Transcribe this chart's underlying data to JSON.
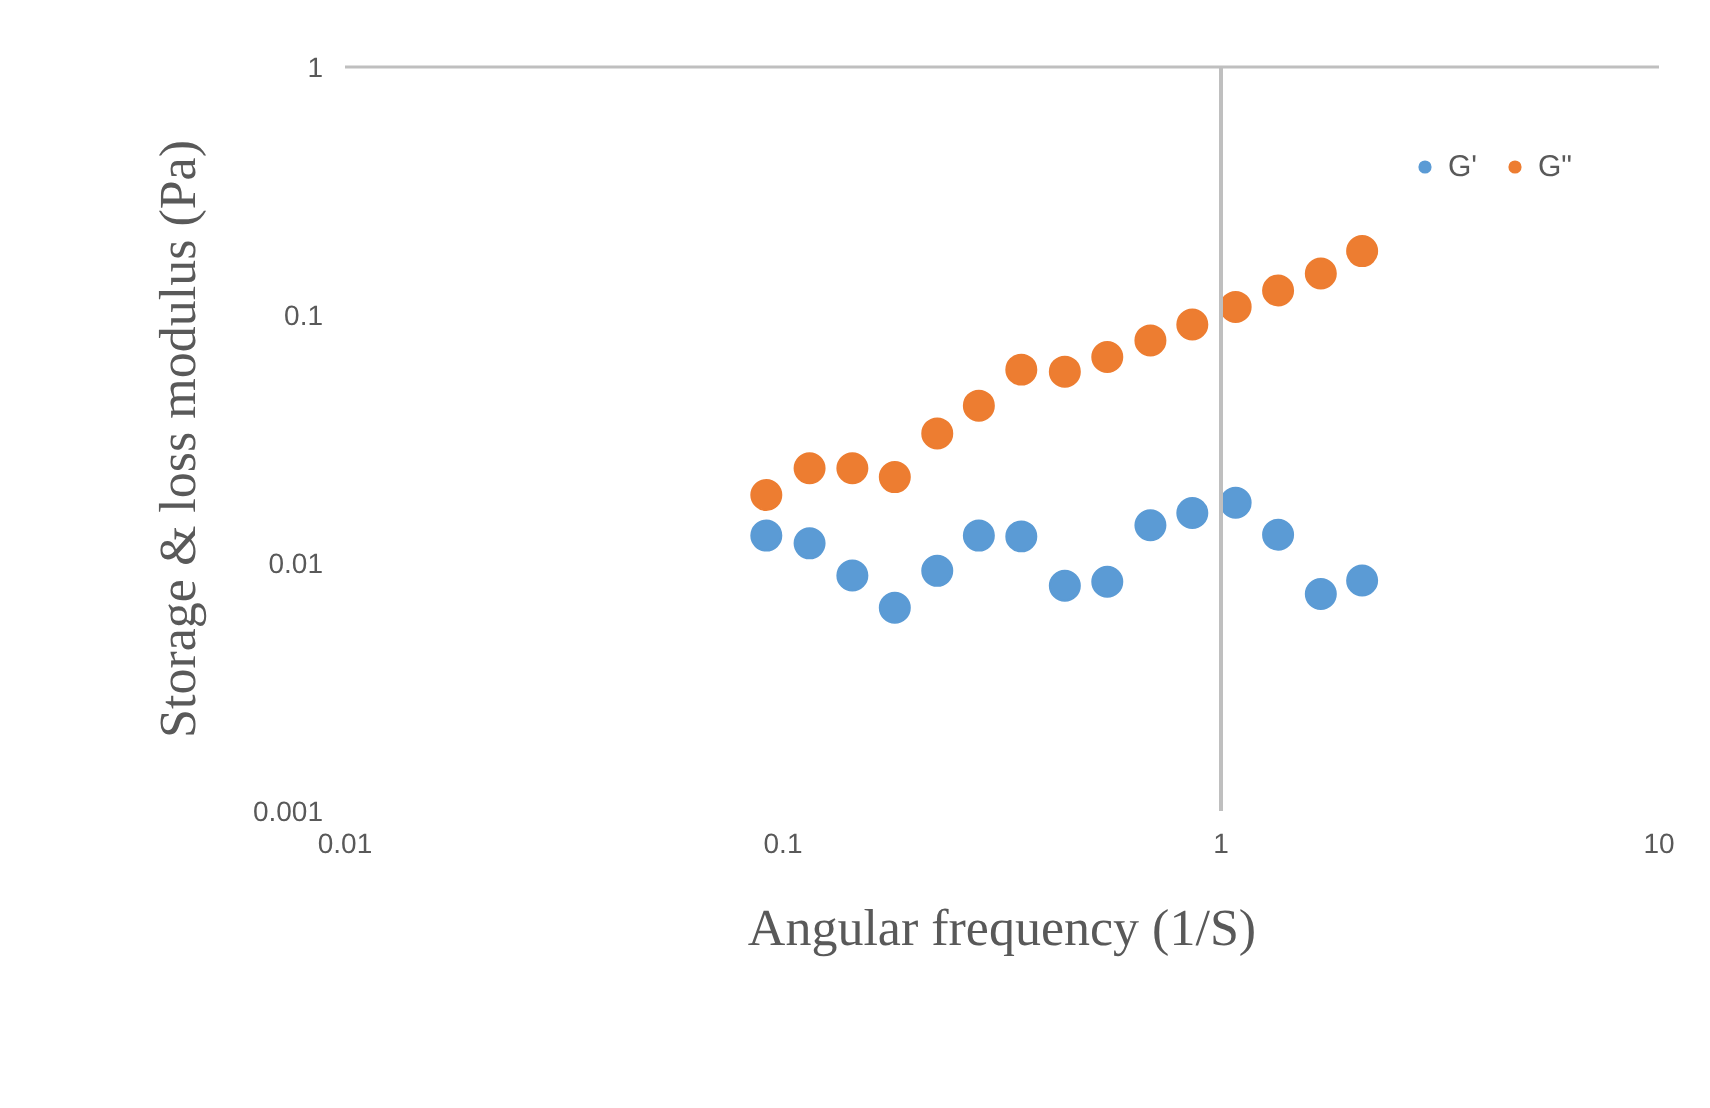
{
  "chart_data": {
    "type": "scatter",
    "xlabel": "Angular frequency (1/S)",
    "ylabel": "Storage & loss modulus (Pa)",
    "x": [
      0.0916,
      0.115,
      0.144,
      0.18,
      0.225,
      0.28,
      0.35,
      0.44,
      0.55,
      0.69,
      0.86,
      1.08,
      1.35,
      1.69,
      2.1
    ],
    "series": [
      {
        "name": "G'",
        "color": "#5b9bd5",
        "values": [
          0.0129,
          0.012,
          0.0089,
          0.0066,
          0.0093,
          0.0129,
          0.0128,
          0.0081,
          0.0084,
          0.0142,
          0.0159,
          0.0175,
          0.013,
          0.0075,
          0.0085
        ]
      },
      {
        "name": "G\"",
        "color": "#ed7d31",
        "values": [
          0.0188,
          0.0241,
          0.0241,
          0.0222,
          0.0333,
          0.0431,
          0.0602,
          0.0591,
          0.0677,
          0.079,
          0.0916,
          0.1078,
          0.1256,
          0.147,
          0.181
        ]
      }
    ],
    "log": "xy",
    "xlim": [
      0.01,
      10
    ],
    "xticks": [
      0.01,
      0.1,
      1,
      10
    ],
    "ylim": [
      0.001,
      1
    ],
    "yticks": [
      0.001,
      0.01,
      0.1,
      1
    ],
    "ref_lines": [
      {
        "axis": "x",
        "value": 1,
        "color": "#bfbfbf"
      }
    ],
    "grid": false,
    "legend": "top right",
    "marker": "circle"
  }
}
